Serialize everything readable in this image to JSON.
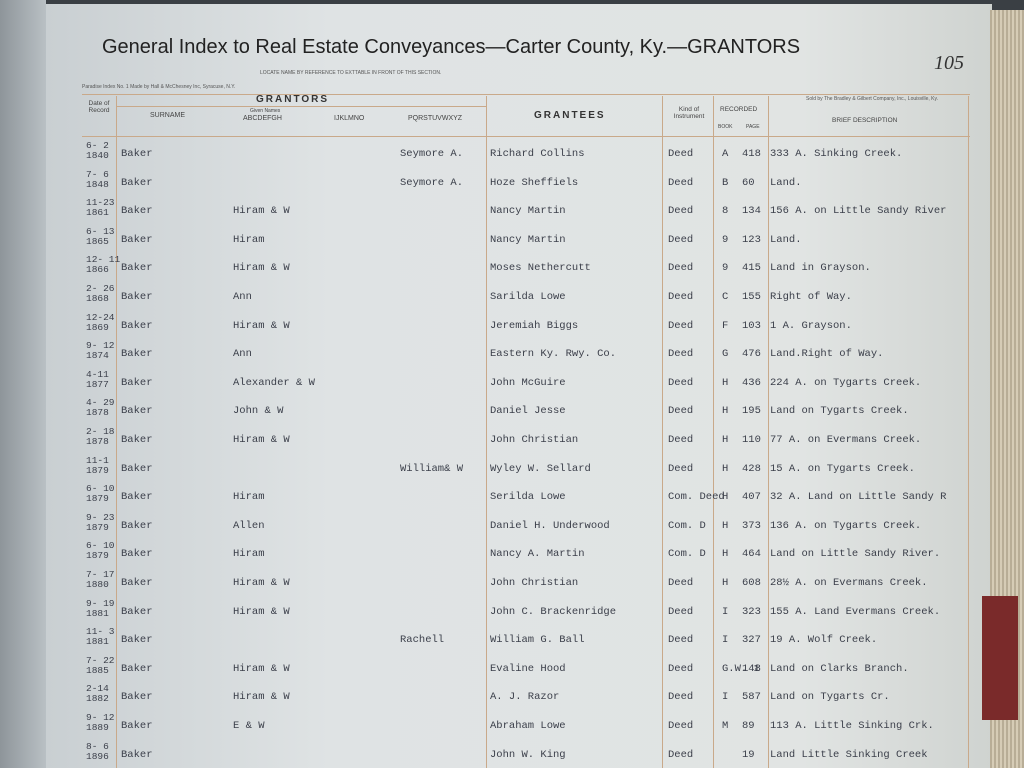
{
  "header": {
    "title": "General Index to Real Estate Conveyances—Carter County, Ky.—GRANTORS",
    "page_number": "105",
    "note": "LOCATE NAME BY REFERENCE TO EXTTABLE IN FRONT OF THIS SECTION.",
    "maker": "Paradise Index No. 1  Made by Hall & McChesney Inc, Syracuse, N.Y.",
    "seller": "Sold by The Bradley & Gilbert Company, Inc., Louisville, Ky."
  },
  "columns": {
    "date": "Date of Record",
    "grantors": "GRANTORS",
    "surname": "SURNAME",
    "given_label": "Given Names",
    "given_a_h": "ABCDEFGH",
    "given_i_o": "IJKLMNO",
    "given_p_z": "PQRSTUVWXYZ",
    "grantees": "GRANTEES",
    "kind": "Kind of Instrument",
    "recorded": "RECORDED",
    "book": "BOOK",
    "page": "PAGE",
    "description": "BRIEF DESCRIPTION"
  },
  "rows": [
    {
      "date": "6- 2",
      "year": "1840",
      "surname": "Baker",
      "given_p_z": "Seymore A.",
      "grantee": "Richard Collins",
      "kind": "Deed",
      "book": "A",
      "page": "418",
      "description": "333 A. Sinking Creek."
    },
    {
      "date": "7- 6",
      "year": "1848",
      "surname": "Baker",
      "given_p_z": "Seymore A.",
      "grantee": "Hoze Sheffiels",
      "kind": "Deed",
      "book": "B",
      "page": "60",
      "description": "Land."
    },
    {
      "date": "11-23",
      "year": "1861",
      "surname": "Baker",
      "given_a_h": "Hiram & W",
      "grantee": "Nancy Martin",
      "kind": "Deed",
      "book": "8",
      "page": "134",
      "description": "156 A. on Little Sandy River"
    },
    {
      "date": "6- 13",
      "year": "1865",
      "surname": "Baker",
      "given_a_h": "Hiram",
      "grantee": "Nancy Martin",
      "kind": "Deed",
      "book": "9",
      "page": "123",
      "description": "Land."
    },
    {
      "date": "12- 11",
      "year": "1866",
      "surname": "Baker",
      "given_a_h": "Hiram & W",
      "grantee": "Moses Nethercutt",
      "kind": "Deed",
      "book": "9",
      "page": "415",
      "description": "Land in Grayson."
    },
    {
      "date": "2- 26",
      "year": "1868",
      "surname": "Baker",
      "given_a_h": "Ann",
      "grantee": "Sarilda Lowe",
      "kind": "Deed",
      "book": "C",
      "page": "155",
      "description": "Right of Way."
    },
    {
      "date": "12-24",
      "year": "1869",
      "surname": "Baker",
      "given_a_h": "Hiram & W",
      "grantee": "Jeremiah Biggs",
      "kind": "Deed",
      "book": "F",
      "page": "103",
      "description": "1 A. Grayson."
    },
    {
      "date": "9- 12",
      "year": "1874",
      "surname": "Baker",
      "given_a_h": "Ann",
      "grantee": "Eastern Ky. Rwy. Co.",
      "kind": "Deed",
      "book": "G",
      "page": "476",
      "description": "Land.Right of Way."
    },
    {
      "date": "4-11",
      "year": "1877",
      "surname": "Baker",
      "given_a_h": "Alexander & W",
      "grantee": "John McGuire",
      "kind": "Deed",
      "book": "H",
      "page": "436",
      "description": "224 A. on Tygarts Creek."
    },
    {
      "date": "4- 29",
      "year": "1878",
      "surname": "Baker",
      "given_a_h": "John & W",
      "grantee": "Daniel Jesse",
      "kind": "Deed",
      "book": "H",
      "page": "195",
      "description": "Land on Tygarts Creek."
    },
    {
      "date": "2- 18",
      "year": "1878",
      "surname": "Baker",
      "given_a_h": "Hiram & W",
      "grantee": "John Christian",
      "kind": "Deed",
      "book": "H",
      "page": "110",
      "description": "77 A. on Evermans Creek."
    },
    {
      "date": "11-1",
      "year": "1879",
      "surname": "Baker",
      "given_p_z": "William& W",
      "grantee": "Wyley W. Sellard",
      "kind": "Deed",
      "book": "H",
      "page": "428",
      "description": "15 A. on Tygarts Creek."
    },
    {
      "date": "6- 10",
      "year": "1879",
      "surname": "Baker",
      "given_a_h": "Hiram",
      "grantee": "Serilda Lowe",
      "kind": "Com. Deed",
      "book": "H",
      "page": "407",
      "description": "32 A. Land on Little Sandy R"
    },
    {
      "date": "9- 23",
      "year": "1879",
      "surname": "Baker",
      "given_a_h": "Allen",
      "grantee": "Daniel H. Underwood",
      "kind": "Com. D",
      "book": "H",
      "page": "373",
      "description": "136 A. on Tygarts Creek."
    },
    {
      "date": "6- 10",
      "year": "1879",
      "surname": "Baker",
      "given_a_h": "Hiram",
      "grantee": "Nancy A. Martin",
      "kind": "Com. D",
      "book": "H",
      "page": "464",
      "description": "Land on Little Sandy River."
    },
    {
      "date": "7- 17",
      "year": "1880",
      "surname": "Baker",
      "given_a_h": "Hiram & W",
      "grantee": "John Christian",
      "kind": "Deed",
      "book": "H",
      "page": "608",
      "description": "28½ A. on Evermans Creek."
    },
    {
      "date": "9- 19",
      "year": "1881",
      "surname": "Baker",
      "given_a_h": "Hiram & W",
      "grantee": "John C. Brackenridge",
      "kind": "Deed",
      "book": "I",
      "page": "323",
      "description": "155 A. Land Evermans Creek."
    },
    {
      "date": "11- 3",
      "year": "1881",
      "surname": "Baker",
      "given_p_z": "Rachell",
      "grantee": "William G. Ball",
      "kind": "Deed",
      "book": "I",
      "page": "327",
      "description": "19 A. Wolf Creek."
    },
    {
      "date": "7- 22",
      "year": "1885",
      "surname": "Baker",
      "given_a_h": "Hiram & W",
      "grantee": "Evaline Hood",
      "kind": "Deed",
      "book": "G.W. 1",
      "page": "148",
      "description": "Land on Clarks Branch."
    },
    {
      "date": "2-14",
      "year": "1882",
      "surname": "Baker",
      "given_a_h": "Hiram & W",
      "grantee": "A. J. Razor",
      "kind": "Deed",
      "book": "I",
      "page": "587",
      "description": "Land on Tygarts Cr."
    },
    {
      "date": "9- 12",
      "year": "1889",
      "surname": "Baker",
      "given_a_h": "E & W",
      "grantee": "Abraham Lowe",
      "kind": "Deed",
      "book": "M",
      "page": "89",
      "description": "113 A. Little Sinking Crk."
    },
    {
      "date": "8- 6",
      "year": "1896",
      "surname": "Baker",
      "grantee": "John W. King",
      "kind": "Deed",
      "page": "19",
      "description": "Land Little Sinking Creek"
    }
  ]
}
